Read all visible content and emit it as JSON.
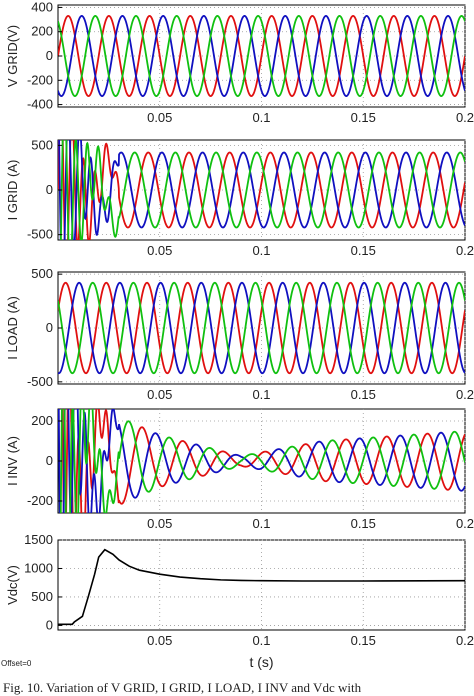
{
  "chart_data": [
    {
      "type": "line",
      "ylabel": "V GRID(V)",
      "ylim": [
        -420,
        420
      ],
      "yticks": [
        400,
        200,
        0,
        -200,
        -400
      ],
      "xlim": [
        0,
        0.2
      ],
      "xticks": [
        0.05,
        0.1,
        0.15,
        0.2
      ],
      "xtick_labels": [
        "0.05",
        "0.1",
        "0.15",
        "0.2"
      ],
      "waveform": "three-phase sinusoid, 50 Hz, amplitude ~330 V",
      "series": [
        {
          "color": "#e01010",
          "values": [
            {
              "t": 0,
              "v": 0
            },
            {
              "t": 0.005,
              "v": 330
            },
            {
              "t": 0.01,
              "v": 0
            },
            {
              "t": 0.015,
              "v": -330
            },
            {
              "t": 0.02,
              "v": 0
            }
          ]
        },
        {
          "color": "#1010c0",
          "values": [
            {
              "t": 0,
              "v": -286
            },
            {
              "t": 0.005,
              "v": -165
            },
            {
              "t": 0.01,
              "v": 286
            },
            {
              "t": 0.015,
              "v": 165
            },
            {
              "t": 0.02,
              "v": -286
            }
          ]
        },
        {
          "color": "#10c010",
          "values": [
            {
              "t": 0,
              "v": 286
            },
            {
              "t": 0.005,
              "v": -165
            },
            {
              "t": 0.01,
              "v": -286
            },
            {
              "t": 0.015,
              "v": 165
            },
            {
              "t": 0.02,
              "v": 286
            }
          ]
        }
      ]
    },
    {
      "type": "line",
      "ylabel": "I GRID (A)",
      "ylim": [
        -560,
        560
      ],
      "yticks": [
        500,
        0,
        -500
      ],
      "xlim": [
        0,
        0.2
      ],
      "xticks": [
        0.05,
        0.1,
        0.15,
        0.2
      ],
      "xtick_labels": [
        "0.05",
        "0.1",
        "0.15",
        "0.2"
      ],
      "waveform": "large transient 0-0.03 s, then three-phase sinusoid, 50 Hz, amplitude ~420 A",
      "steady_amplitude": 420,
      "series": [
        {
          "color": "#e01010"
        },
        {
          "color": "#1010c0"
        },
        {
          "color": "#10c010"
        }
      ]
    },
    {
      "type": "line",
      "ylabel": "I LOAD (A)",
      "ylim": [
        -520,
        520
      ],
      "yticks": [
        500,
        0,
        -500
      ],
      "xlim": [
        0,
        0.2
      ],
      "xticks": [
        0.05,
        0.1,
        0.15,
        0.2
      ],
      "xtick_labels": [
        "0.05",
        "0.1",
        "0.15",
        "0.2"
      ],
      "waveform": "three-phase sinusoid, 50 Hz, amplitude ~420 A",
      "steady_amplitude": 420,
      "series": [
        {
          "color": "#e01010"
        },
        {
          "color": "#1010c0"
        },
        {
          "color": "#10c010"
        }
      ]
    },
    {
      "type": "line",
      "ylabel": "I INV (A)",
      "ylim": [
        -260,
        260
      ],
      "yticks": [
        200,
        0,
        -200
      ],
      "xlim": [
        0,
        0.2
      ],
      "xticks": [
        0.05,
        0.1,
        0.15,
        0.2
      ],
      "xtick_labels": [
        "0.05",
        "0.1",
        "0.15",
        "0.2"
      ],
      "waveform": "large transient 0-0.03 s, decaying to ~25 A near 0.09 s, then rising to ~150 A",
      "envelope": [
        {
          "t": 0.03,
          "a": 220
        },
        {
          "t": 0.05,
          "a": 130
        },
        {
          "t": 0.09,
          "a": 25
        },
        {
          "t": 0.13,
          "a": 100
        },
        {
          "t": 0.2,
          "a": 150
        }
      ],
      "series": [
        {
          "color": "#e01010"
        },
        {
          "color": "#1010c0"
        },
        {
          "color": "#10c010"
        }
      ]
    },
    {
      "type": "line",
      "ylabel": "Vdc(V)",
      "xlabel": "t (s)",
      "ylim": [
        -80,
        1500
      ],
      "yticks": [
        1500,
        1000,
        500,
        0
      ],
      "xlim": [
        0,
        0.2
      ],
      "xticks": [
        0.05,
        0.1,
        0.15,
        0.2
      ],
      "xtick_labels": [
        "0.05",
        "0.1",
        "0.15",
        "0.2"
      ],
      "series": [
        {
          "color": "#000000",
          "x": [
            0,
            0.007,
            0.008,
            0.012,
            0.015,
            0.018,
            0.02,
            0.023,
            0.027,
            0.03,
            0.035,
            0.04,
            0.05,
            0.06,
            0.07,
            0.08,
            0.09,
            0.1,
            0.12,
            0.15,
            0.2
          ],
          "y": [
            20,
            20,
            60,
            160,
            520,
            900,
            1200,
            1330,
            1250,
            1150,
            1040,
            970,
            900,
            850,
            820,
            800,
            790,
            785,
            780,
            780,
            785
          ]
        }
      ]
    }
  ],
  "offset_label": "Offset=0",
  "caption": "Fig. 10.   Variation of V GRID, I GRID, I LOAD, I INV and Vdc with"
}
